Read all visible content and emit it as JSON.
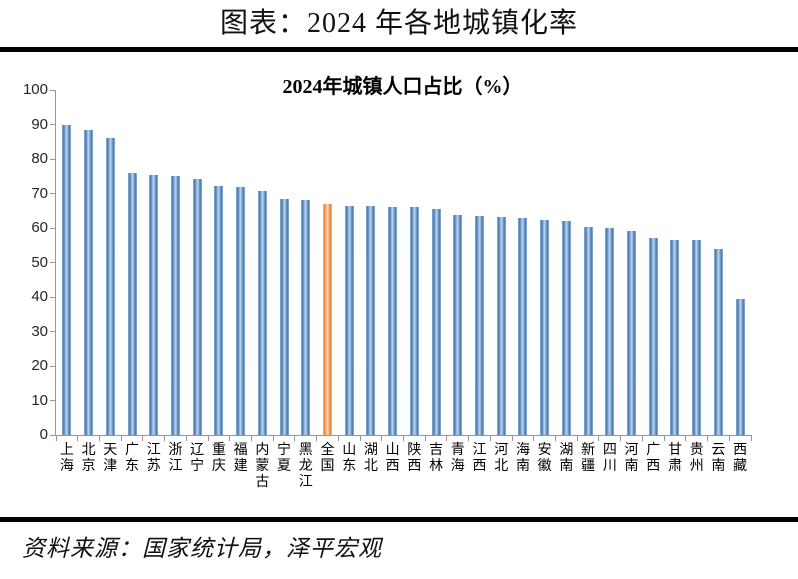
{
  "page": {
    "title": "图表：2024 年各地城镇化率",
    "source": "资料来源：国家统计局，泽平宏观",
    "divider_color": "#000000",
    "background_color": "#ffffff"
  },
  "chart_data": {
    "type": "bar",
    "title": "2024年城镇人口占比（%）",
    "categories": [
      "上海",
      "北京",
      "天津",
      "广东",
      "江苏",
      "浙江",
      "辽宁",
      "重庆",
      "福建",
      "内蒙古",
      "宁夏",
      "黑龙江",
      "全国",
      "山东",
      "湖北",
      "山西",
      "陕西",
      "吉林",
      "青海",
      "江西",
      "河北",
      "海南",
      "安徽",
      "湖南",
      "新疆",
      "四川",
      "河南",
      "广西",
      "甘肃",
      "贵州",
      "云南",
      "西藏"
    ],
    "values": [
      89.9,
      88.3,
      86.1,
      76.0,
      75.5,
      75.2,
      74.2,
      72.2,
      71.8,
      70.8,
      68.4,
      68.0,
      67.0,
      66.5,
      66.4,
      66.2,
      66.0,
      65.5,
      63.7,
      63.4,
      63.2,
      62.9,
      62.4,
      62.0,
      60.2,
      59.9,
      59.1,
      57.2,
      56.6,
      56.4,
      53.9,
      39.4
    ],
    "highlight_category": "全国",
    "highlight_index": 12,
    "xlabel": "",
    "ylabel": "",
    "ylim": [
      0,
      100
    ],
    "yticks": [
      0,
      10,
      20,
      30,
      40,
      50,
      60,
      70,
      80,
      90,
      100
    ],
    "grid": false,
    "legend": false,
    "bar_color": "#4f81bd",
    "highlight_color": "#ed8c42",
    "axis_color": "#969696"
  }
}
